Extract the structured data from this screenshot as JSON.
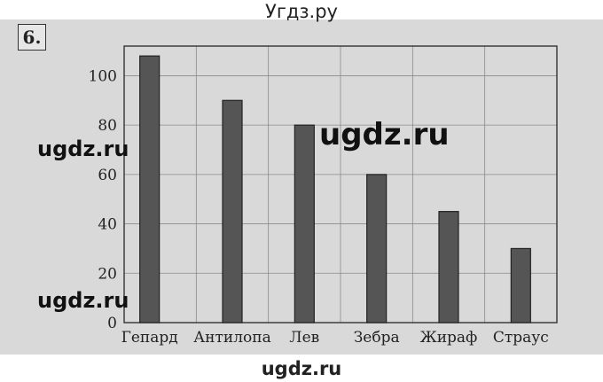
{
  "site_title": "Угдз.ру",
  "footer_watermark": "ugdz.ru",
  "task_number": "6.",
  "watermarks": [
    "ugdz.ru",
    "ugdz.ru",
    "ugdz.ru"
  ],
  "chart_data": {
    "type": "bar",
    "categories": [
      "Гепард",
      "Антилопа",
      "Лев",
      "Зебра",
      "Жираф",
      "Страус"
    ],
    "values": [
      108,
      90,
      80,
      60,
      45,
      30
    ],
    "yticks": [
      0,
      20,
      40,
      60,
      80,
      100
    ],
    "ylim": [
      0,
      112
    ],
    "grid": true,
    "bar_color": "#555555",
    "title": "",
    "xlabel": "",
    "ylabel": ""
  }
}
